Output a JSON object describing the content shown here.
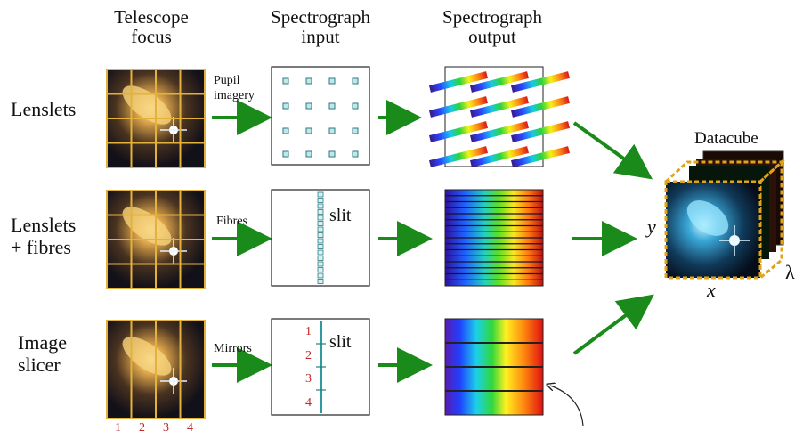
{
  "headers": {
    "telescope": [
      "Telescope",
      "focus"
    ],
    "input": [
      "Spectrograph",
      "input"
    ],
    "output": [
      "Spectrograph",
      "output"
    ]
  },
  "rows": {
    "lenslets": [
      "Lenslets"
    ],
    "fibres": [
      "Lenslets",
      "+ fibres"
    ],
    "slicer": [
      "Image",
      "slicer"
    ]
  },
  "arrow_labels": {
    "pupil": [
      "Pupil",
      "imagery"
    ],
    "fibres": "Fibres",
    "mirrors": "Mirrors"
  },
  "slit_label": "slit",
  "slice_numbers": [
    "1",
    "2",
    "3",
    "4"
  ],
  "datacube": {
    "title": "Datacube",
    "x": "x",
    "y": "y",
    "lambda": "λ"
  },
  "colors": {
    "arrow": "#1a8a1a",
    "grid": "#e3b23c",
    "cube_border": "#e0a41a",
    "slice_num": "#c0282a"
  }
}
